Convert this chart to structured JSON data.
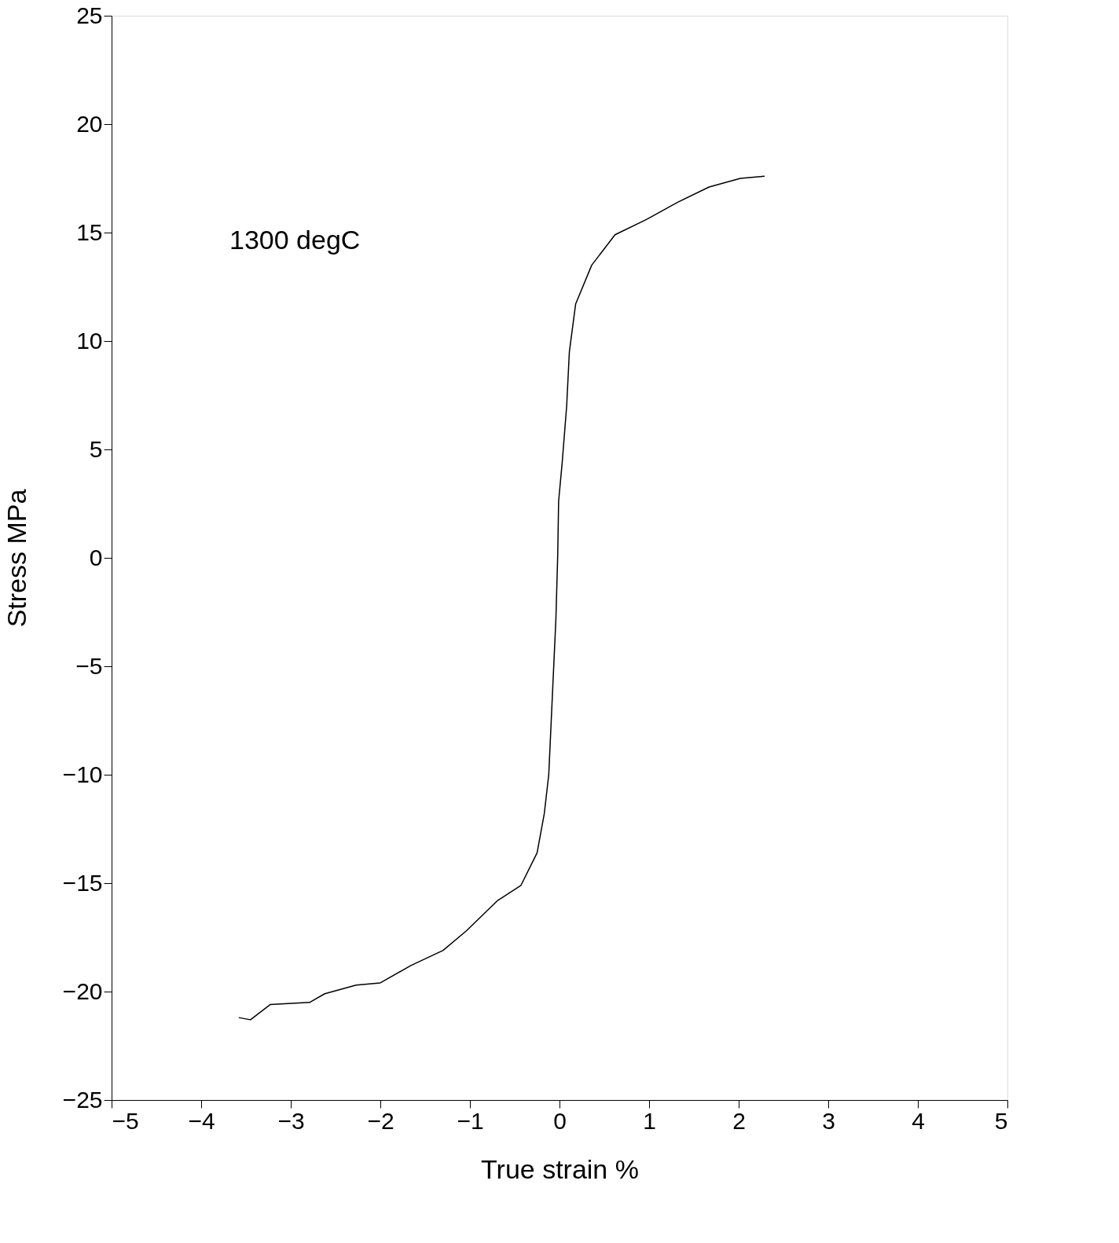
{
  "chart_data": {
    "type": "line",
    "xlabel": "True strain    %",
    "ylabel": "Stress    MPa",
    "annotations": [
      "1300  degC"
    ],
    "x": [
      -3.58,
      -3.45,
      -3.23,
      -2.79,
      -2.62,
      -2.27,
      -2.0,
      -1.66,
      -1.3,
      -1.04,
      -0.69,
      -0.43,
      -0.25,
      -0.17,
      -0.12,
      -0.08,
      -0.04,
      -0.02,
      -0.01,
      0.03,
      0.08,
      0.11,
      0.18,
      0.36,
      0.62,
      0.97,
      1.32,
      1.67,
      2.02,
      2.29
    ],
    "series": [
      {
        "color": "#000000",
        "values": [
          -21.2,
          -21.3,
          -20.6,
          -20.5,
          -20.1,
          -19.7,
          -19.6,
          -18.8,
          -18.1,
          -17.2,
          -15.8,
          -15.1,
          -13.6,
          -11.8,
          -10.0,
          -6.4,
          -2.8,
          0.1,
          2.6,
          4.4,
          7.0,
          9.5,
          11.7,
          13.5,
          14.9,
          15.6,
          16.4,
          17.1,
          17.5,
          17.6
        ]
      }
    ],
    "xlim": [
      -5,
      5
    ],
    "xticks": [
      -5,
      -4,
      -3,
      -2,
      -1,
      0,
      1,
      2,
      3,
      4,
      5
    ],
    "ylim": [
      -25,
      25
    ],
    "yticks": [
      -25,
      -20,
      -15,
      -10,
      -5,
      0,
      5,
      10,
      15,
      20,
      25
    ],
    "grid": false,
    "marker": "none",
    "line_style": "solid"
  }
}
